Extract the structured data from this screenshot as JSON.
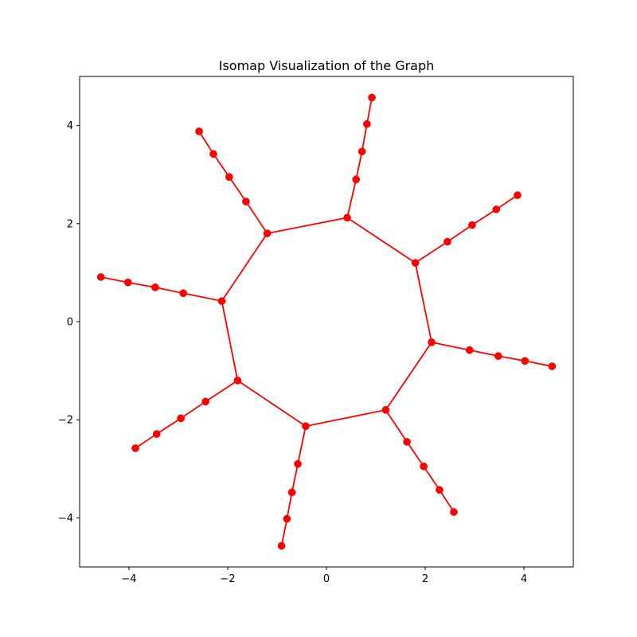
{
  "chart_data": {
    "type": "line",
    "title": "Isomap Visualization of the Graph",
    "xlabel": "",
    "ylabel": "",
    "xlim": [
      -5,
      5
    ],
    "ylim": [
      -5,
      5
    ],
    "xticks": [
      -4,
      -2,
      0,
      2,
      4
    ],
    "yticks": [
      -4,
      -2,
      0,
      2,
      4
    ],
    "xtick_labels": [
      "−4",
      "−2",
      "0",
      "2",
      "4"
    ],
    "ytick_labels": [
      "−4",
      "−2",
      "0",
      "2",
      "4"
    ],
    "grid": false,
    "color": "#ff0000",
    "edge_color": "#ff0000",
    "nodes": [
      [
        0.42,
        2.12
      ],
      [
        1.8,
        1.2
      ],
      [
        2.13,
        -0.42
      ],
      [
        1.2,
        -1.8
      ],
      [
        -0.42,
        -2.13
      ],
      [
        -1.8,
        -1.2
      ],
      [
        -2.12,
        0.42
      ],
      [
        -1.2,
        1.8
      ],
      [
        0.6,
        2.9
      ],
      [
        0.72,
        3.47
      ],
      [
        0.82,
        4.03
      ],
      [
        0.92,
        4.57
      ],
      [
        2.45,
        1.63
      ],
      [
        2.95,
        1.97
      ],
      [
        3.44,
        2.29
      ],
      [
        3.87,
        2.58
      ],
      [
        2.9,
        -0.58
      ],
      [
        3.48,
        -0.7
      ],
      [
        4.02,
        -0.8
      ],
      [
        4.57,
        -0.91
      ],
      [
        1.63,
        -2.45
      ],
      [
        1.97,
        -2.95
      ],
      [
        2.29,
        -3.43
      ],
      [
        2.58,
        -3.88
      ],
      [
        -0.58,
        -2.9
      ],
      [
        -0.7,
        -3.48
      ],
      [
        -0.8,
        -4.02
      ],
      [
        -0.91,
        -4.57
      ],
      [
        -2.45,
        -1.63
      ],
      [
        -2.95,
        -1.97
      ],
      [
        -3.44,
        -2.29
      ],
      [
        -3.87,
        -2.58
      ],
      [
        -2.9,
        0.58
      ],
      [
        -3.47,
        0.7
      ],
      [
        -4.02,
        0.8
      ],
      [
        -4.57,
        0.91
      ],
      [
        -1.63,
        2.45
      ],
      [
        -1.97,
        2.95
      ],
      [
        -2.29,
        3.42
      ],
      [
        -2.58,
        3.88
      ]
    ],
    "edges": [
      [
        0,
        1
      ],
      [
        1,
        2
      ],
      [
        2,
        3
      ],
      [
        3,
        4
      ],
      [
        4,
        5
      ],
      [
        5,
        6
      ],
      [
        6,
        7
      ],
      [
        7,
        0
      ],
      [
        0,
        8
      ],
      [
        8,
        9
      ],
      [
        9,
        10
      ],
      [
        10,
        11
      ],
      [
        1,
        12
      ],
      [
        12,
        13
      ],
      [
        13,
        14
      ],
      [
        14,
        15
      ],
      [
        2,
        16
      ],
      [
        16,
        17
      ],
      [
        17,
        18
      ],
      [
        18,
        19
      ],
      [
        3,
        20
      ],
      [
        20,
        21
      ],
      [
        21,
        22
      ],
      [
        22,
        23
      ],
      [
        4,
        24
      ],
      [
        24,
        25
      ],
      [
        25,
        26
      ],
      [
        26,
        27
      ],
      [
        5,
        28
      ],
      [
        28,
        29
      ],
      [
        29,
        30
      ],
      [
        30,
        31
      ],
      [
        6,
        32
      ],
      [
        32,
        33
      ],
      [
        33,
        34
      ],
      [
        34,
        35
      ],
      [
        7,
        36
      ],
      [
        36,
        37
      ],
      [
        37,
        38
      ],
      [
        38,
        39
      ]
    ]
  }
}
